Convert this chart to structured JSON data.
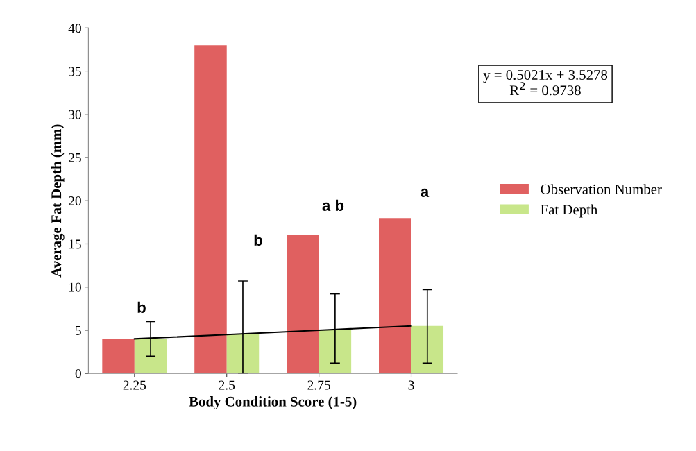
{
  "chart_data": {
    "type": "bar",
    "xlabel": "Body Condition Score (1-5)",
    "ylabel": "Average Fat Depth (mm)",
    "categories": [
      "2.25",
      "2.5",
      "2.75",
      "3"
    ],
    "series": [
      {
        "name": "Observation Number",
        "color": "#e06060",
        "values": [
          4,
          38,
          16,
          18
        ]
      },
      {
        "name": "Fat Depth",
        "color": "#c8e68a",
        "values": [
          4.0,
          4.6,
          5.0,
          5.5
        ],
        "errors": [
          [
            2.0,
            6.0
          ],
          [
            0,
            10.7
          ],
          [
            1.2,
            9.2
          ],
          [
            1.2,
            9.7
          ]
        ]
      },
      {
        "type": "line",
        "color": "#000000",
        "values": [
          4.0,
          4.5,
          5.0,
          5.5
        ]
      }
    ],
    "ylim": [
      0,
      40
    ],
    "yticks": [
      0,
      5,
      10,
      15,
      20,
      25,
      30,
      35,
      40
    ],
    "legend": "right",
    "grid": false,
    "annotations": [
      "b",
      "b",
      "a b",
      "a",
      "y = 0.5021x + 3.5278\nR$^{2}$ = 0.9738"
    ]
  }
}
